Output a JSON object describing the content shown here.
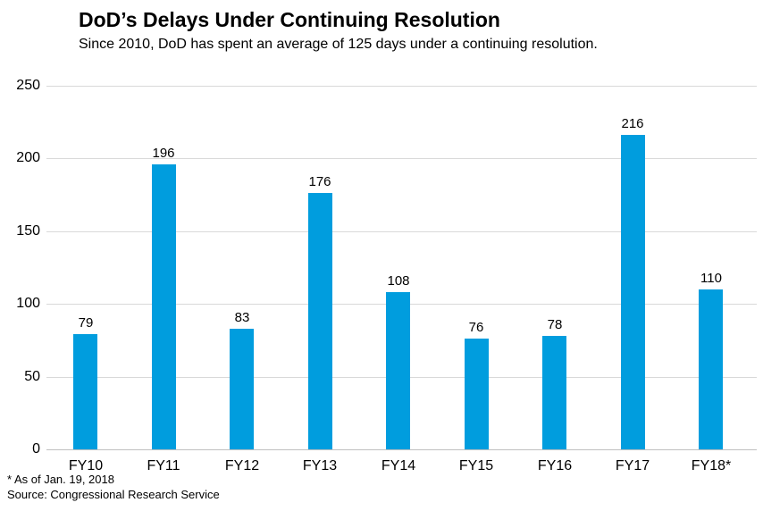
{
  "header": {
    "title": "DoD’s Delays Under Continuing Resolution",
    "subtitle": "Since 2010, DoD has spent an average of 125 days under a continuing resolution."
  },
  "chart_data": {
    "type": "bar",
    "categories": [
      "FY10",
      "FY11",
      "FY12",
      "FY13",
      "FY14",
      "FY15",
      "FY16",
      "FY17",
      "FY18*"
    ],
    "values": [
      79,
      196,
      83,
      176,
      108,
      76,
      78,
      216,
      110
    ],
    "title": "DoD’s Delays Under Continuing Resolution",
    "subtitle": "Since 2010, DoD has spent an average of 125 days under a continuing resolution.",
    "xlabel": "",
    "ylabel": "",
    "ylim": [
      0,
      250
    ],
    "yticks": [
      0,
      50,
      100,
      150,
      200,
      250
    ],
    "grid": true,
    "legend": false,
    "data_labels": true,
    "bar_color": "#009DDE",
    "gridline_color": "#d9d9d9",
    "axis_line_color": "#bfbfbf",
    "text_color": "#000000"
  },
  "footnotes": {
    "asterisk_note": "* As of Jan. 19, 2018",
    "source": "Source: Congressional Research Service"
  }
}
